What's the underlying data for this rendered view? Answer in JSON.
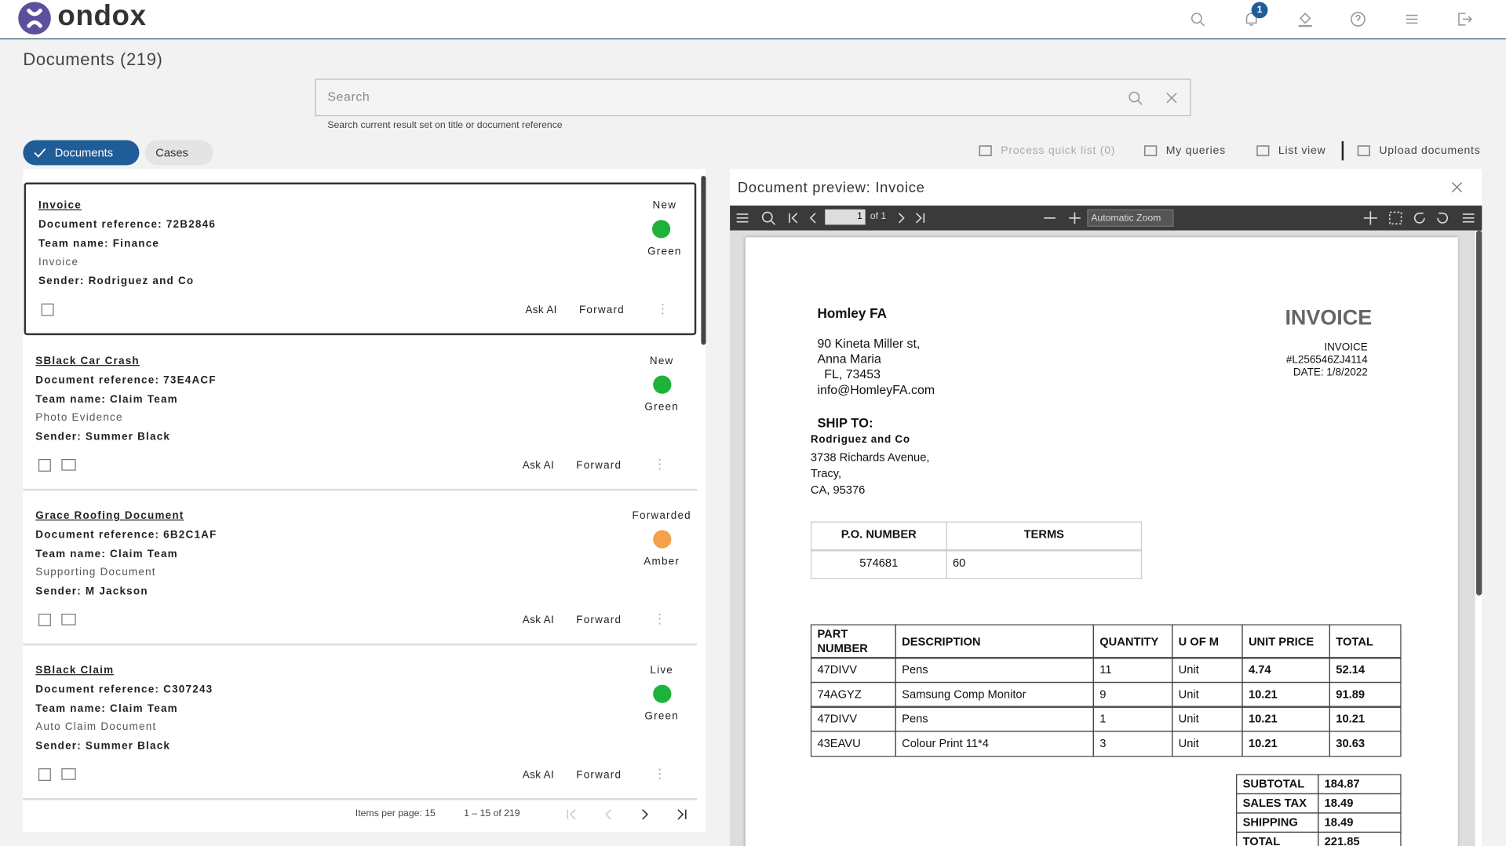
{
  "header": {
    "logo": "ondox",
    "notification_count": "1"
  },
  "page_title": "Documents (219)",
  "search": {
    "placeholder": "Search",
    "hint": "Search current result set on title or document reference"
  },
  "tabs": [
    "Documents",
    "Cases"
  ],
  "toolbar": [
    "Process quick list (0)",
    "My queries",
    "List view",
    "Upload documents"
  ],
  "cards": [
    {
      "title": "Invoice",
      "reference": "Document reference: 72B2846",
      "team": "Team name: Finance",
      "type": "Invoice",
      "sender": "Sender: Rodriguez and Co",
      "status": "New",
      "rag": "Green",
      "dot_color": "#1db33b",
      "actions": [
        "Ask AI",
        "Forward"
      ]
    },
    {
      "title": "SBlack Car Crash",
      "reference": "Document reference: 73E4ACF",
      "team": "Team name: Claim Team",
      "type": "Photo Evidence",
      "sender": "Sender: Summer Black",
      "status": "New",
      "rag": "Green",
      "dot_color": "#1db33b",
      "actions": [
        "Ask AI",
        "Forward"
      ]
    },
    {
      "title": "Grace Roofing Document",
      "reference": "Document reference: 6B2C1AF",
      "team": "Team name: Claim Team",
      "type": "Supporting Document",
      "sender": "Sender: M Jackson",
      "status": "Forwarded",
      "rag": "Amber",
      "dot_color": "#f5a04a",
      "actions": [
        "Ask AI",
        "Forward"
      ]
    },
    {
      "title": "SBlack Claim",
      "reference": "Document reference: C307243",
      "team": "Team name: Claim Team",
      "type": "Auto Claim Document",
      "sender": "Sender: Summer Black",
      "status": "Live",
      "rag": "Green",
      "dot_color": "#1db33b",
      "actions": [
        "Ask AI",
        "Forward"
      ]
    }
  ],
  "pagination": {
    "items_per_page": "Items per page: 15",
    "range": "1 – 15 of 219"
  },
  "preview": {
    "title": "Document preview: Invoice",
    "page": "1",
    "page_count": "of 1",
    "zoom": "Automatic Zoom"
  },
  "invoice": {
    "company": "Homley FA",
    "address": [
      "90 Kineta Miller st,",
      "Anna Maria",
      "  FL, 73453",
      "info@HomleyFA.com"
    ],
    "heading": "INVOICE",
    "meta": [
      "INVOICE",
      "#L256546ZJ4114",
      "DATE: 1/8/2022"
    ],
    "ship_to_label": "SHIP TO:",
    "ship_to": [
      "Rodriguez and Co",
      "3738 Richards Avenue,",
      "Tracy,",
      "CA, 95376"
    ],
    "po_table": {
      "headers": [
        "P.O. NUMBER",
        "TERMS"
      ],
      "row": [
        "574681",
        "60"
      ]
    },
    "items": {
      "headers": [
        "PART\nNUMBER",
        "DESCRIPTION",
        "QUANTITY",
        "U OF M",
        "UNIT PRICE",
        "TOTAL"
      ],
      "rows": [
        [
          "47DIVV",
          "Pens",
          "11",
          "Unit",
          "4.74",
          "52.14"
        ],
        [
          "74AGYZ",
          "Samsung Comp Monitor",
          "9",
          "Unit",
          "10.21",
          "91.89"
        ],
        [
          "47DIVV",
          "Pens",
          "1",
          "Unit",
          "10.21",
          "10.21"
        ],
        [
          "43EAVU",
          "Colour Print 11*4",
          "3",
          "Unit",
          "10.21",
          "30.63"
        ]
      ]
    },
    "totals": [
      [
        "SUBTOTAL",
        "184.87"
      ],
      [
        "SALES TAX",
        "18.49"
      ],
      [
        "SHIPPING",
        "18.49"
      ],
      [
        "TOTAL",
        "221.85"
      ]
    ]
  }
}
